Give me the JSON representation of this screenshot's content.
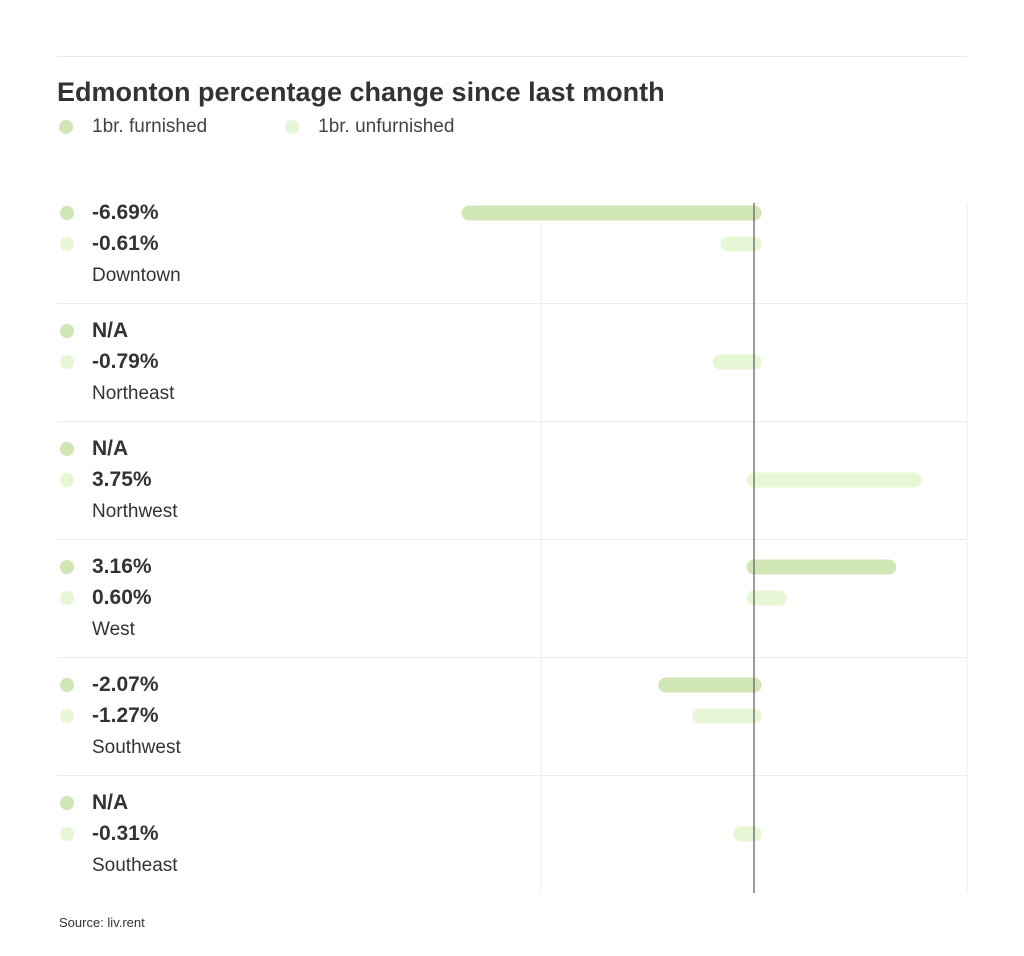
{
  "chart_data": {
    "type": "bar",
    "orientation": "horizontal",
    "title": "Edmonton percentage change since last month",
    "categories": [
      "Downtown",
      "Northeast",
      "Northwest",
      "West",
      "Southwest",
      "Southeast"
    ],
    "series": [
      {
        "name": "1br. furnished",
        "color": "#d0e6b4",
        "values": [
          -6.69,
          null,
          null,
          3.16,
          -2.07,
          null
        ],
        "labels": [
          "-6.69%",
          "N/A",
          "N/A",
          "3.16%",
          "-2.07%",
          "N/A"
        ]
      },
      {
        "name": "1br. unfurnished",
        "color": "#e6f7d6",
        "values": [
          -0.61,
          -0.79,
          3.75,
          0.6,
          -1.27,
          -0.31
        ],
        "labels": [
          "-0.61%",
          "-0.79%",
          "3.75%",
          "0.60%",
          "-1.27%",
          "-0.31%"
        ]
      }
    ],
    "xlim": [
      -10,
      5
    ],
    "grid_step": 5,
    "grid": true,
    "legend": "top-left",
    "source": "Source: liv.rent"
  }
}
